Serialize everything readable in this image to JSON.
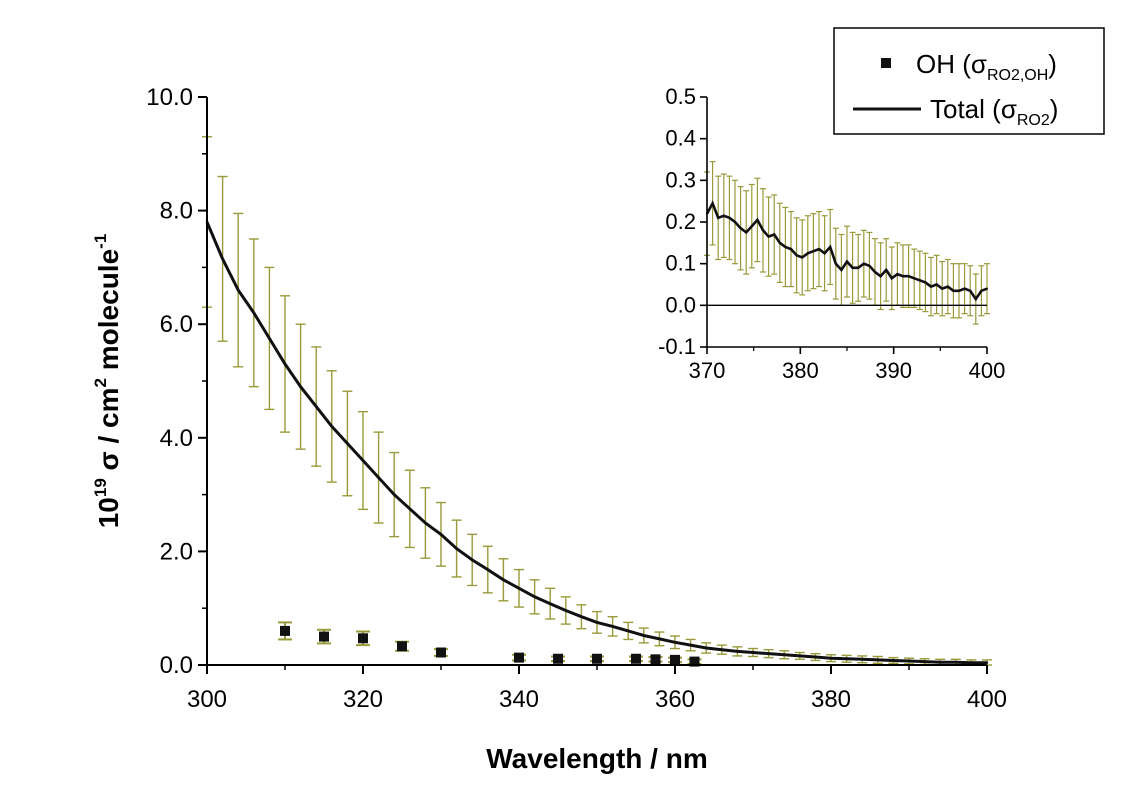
{
  "colors": {
    "line": "#111111",
    "error_bar": "#9a9a3a",
    "marker": "#111111",
    "axis": "#000000"
  },
  "chart_data": [
    {
      "type": "line",
      "xlabel": "Wavelength / nm",
      "ylabel": {
        "base": "10",
        "exp1": "19",
        "mid": " σ / cm",
        "exp2": "2",
        "tail": " molecule",
        "exp3": "-1"
      },
      "xlim": [
        300,
        400
      ],
      "ylim": [
        0,
        10
      ],
      "xticks": [
        "300",
        "320",
        "340",
        "360",
        "380",
        "400"
      ],
      "yticks": [
        "0.0",
        "2.0",
        "4.0",
        "6.0",
        "8.0",
        "10.0"
      ],
      "legend_position": "top-right",
      "legend": [
        {
          "symbol": "square",
          "label": "OH",
          "sigma": "σ",
          "sub": "RO2,OH"
        },
        {
          "symbol": "line",
          "label": "Total",
          "sigma": "σ",
          "sub": "RO2"
        }
      ],
      "series": [
        {
          "name": "Total",
          "kind": "line",
          "x": [
            300,
            302,
            304,
            306,
            308,
            310,
            312,
            314,
            316,
            318,
            320,
            322,
            324,
            326,
            328,
            330,
            332,
            334,
            336,
            338,
            340,
            342,
            344,
            346,
            348,
            350,
            352,
            354,
            356,
            358,
            360,
            362,
            364,
            366,
            368,
            370,
            372,
            374,
            376,
            378,
            380,
            382,
            384,
            386,
            388,
            390,
            392,
            394,
            396,
            398,
            400
          ],
          "y": [
            7.8,
            7.15,
            6.6,
            6.2,
            5.75,
            5.3,
            4.9,
            4.55,
            4.2,
            3.9,
            3.6,
            3.3,
            3.0,
            2.75,
            2.5,
            2.3,
            2.05,
            1.85,
            1.68,
            1.5,
            1.35,
            1.2,
            1.08,
            0.96,
            0.85,
            0.75,
            0.68,
            0.6,
            0.52,
            0.46,
            0.4,
            0.35,
            0.3,
            0.27,
            0.24,
            0.22,
            0.2,
            0.18,
            0.16,
            0.14,
            0.12,
            0.11,
            0.1,
            0.09,
            0.08,
            0.07,
            0.06,
            0.05,
            0.05,
            0.04,
            0.04
          ],
          "err": [
            1.5,
            1.45,
            1.35,
            1.3,
            1.25,
            1.2,
            1.1,
            1.05,
            0.98,
            0.92,
            0.86,
            0.8,
            0.74,
            0.68,
            0.62,
            0.56,
            0.5,
            0.45,
            0.41,
            0.37,
            0.33,
            0.3,
            0.27,
            0.24,
            0.21,
            0.19,
            0.17,
            0.15,
            0.13,
            0.12,
            0.11,
            0.1,
            0.09,
            0.08,
            0.08,
            0.07,
            0.07,
            0.07,
            0.06,
            0.06,
            0.06,
            0.06,
            0.06,
            0.06,
            0.05,
            0.05,
            0.05,
            0.05,
            0.05,
            0.05,
            0.05
          ]
        },
        {
          "name": "OH",
          "kind": "scatter",
          "x": [
            310,
            315,
            320,
            325,
            330,
            340,
            345,
            350,
            355,
            357.5,
            360,
            362.5
          ],
          "y": [
            0.6,
            0.5,
            0.47,
            0.33,
            0.22,
            0.13,
            0.11,
            0.11,
            0.11,
            0.1,
            0.09,
            0.06
          ],
          "err": [
            0.15,
            0.12,
            0.12,
            0.08,
            0.06,
            0.05,
            0.04,
            0.04,
            0.04,
            0.04,
            0.04,
            0.04
          ]
        }
      ]
    },
    {
      "type": "line",
      "role": "inset",
      "xlim": [
        370,
        400
      ],
      "ylim": [
        -0.1,
        0.5
      ],
      "xticks": [
        "370",
        "380",
        "390",
        "400"
      ],
      "yticks": [
        "-0.1",
        "0.0",
        "0.1",
        "0.2",
        "0.3",
        "0.4",
        "0.5"
      ],
      "zero_line": true,
      "series": [
        {
          "name": "Total",
          "kind": "line",
          "x": [
            370,
            370.6,
            371.2,
            371.8,
            372.4,
            373.0,
            373.6,
            374.2,
            374.8,
            375.4,
            376.0,
            376.6,
            377.2,
            377.8,
            378.4,
            379.0,
            379.6,
            380.2,
            380.8,
            381.4,
            382.0,
            382.6,
            383.2,
            383.8,
            384.4,
            385.0,
            385.6,
            386.2,
            386.8,
            387.4,
            388.0,
            388.6,
            389.2,
            389.8,
            390.4,
            391.0,
            391.6,
            392.2,
            392.8,
            393.4,
            394.0,
            394.6,
            395.2,
            395.8,
            396.4,
            397.0,
            397.6,
            398.2,
            398.8,
            399.4,
            400
          ],
          "y": [
            0.22,
            0.245,
            0.21,
            0.215,
            0.21,
            0.2,
            0.185,
            0.175,
            0.19,
            0.205,
            0.18,
            0.165,
            0.17,
            0.15,
            0.14,
            0.135,
            0.12,
            0.115,
            0.125,
            0.13,
            0.135,
            0.125,
            0.14,
            0.1,
            0.085,
            0.105,
            0.09,
            0.09,
            0.1,
            0.095,
            0.08,
            0.07,
            0.085,
            0.065,
            0.075,
            0.07,
            0.07,
            0.065,
            0.06,
            0.055,
            0.045,
            0.05,
            0.04,
            0.045,
            0.035,
            0.035,
            0.04,
            0.035,
            0.015,
            0.035,
            0.04
          ],
          "err": [
            0.1,
            0.1,
            0.1,
            0.1,
            0.1,
            0.1,
            0.1,
            0.1,
            0.1,
            0.1,
            0.1,
            0.095,
            0.095,
            0.095,
            0.095,
            0.09,
            0.09,
            0.09,
            0.09,
            0.09,
            0.09,
            0.09,
            0.09,
            0.085,
            0.085,
            0.085,
            0.085,
            0.08,
            0.08,
            0.08,
            0.08,
            0.08,
            0.075,
            0.075,
            0.075,
            0.075,
            0.075,
            0.07,
            0.07,
            0.07,
            0.07,
            0.07,
            0.065,
            0.065,
            0.065,
            0.065,
            0.06,
            0.06,
            0.06,
            0.06,
            0.06
          ]
        }
      ]
    }
  ]
}
